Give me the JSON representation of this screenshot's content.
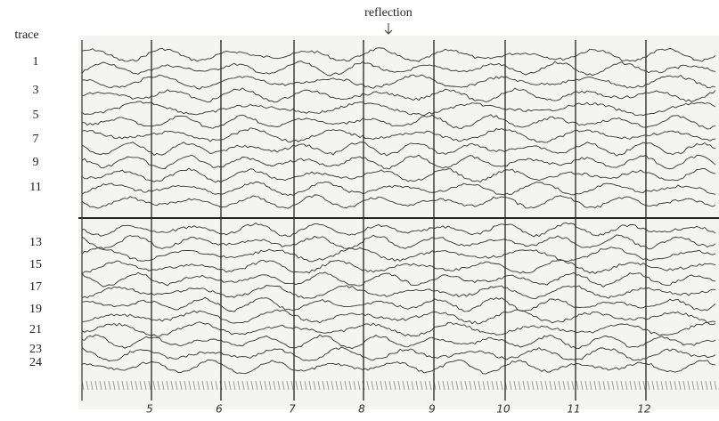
{
  "header": {
    "title": "reflection",
    "axis_label": "trace"
  },
  "trace_labels": [
    "1",
    "3",
    "5",
    "7",
    "9",
    "11",
    "13",
    "15",
    "17",
    "19",
    "21",
    "23",
    "24"
  ],
  "time_marks": [
    "5",
    "6",
    "7",
    "8",
    "9",
    "10",
    "11",
    "12"
  ]
}
